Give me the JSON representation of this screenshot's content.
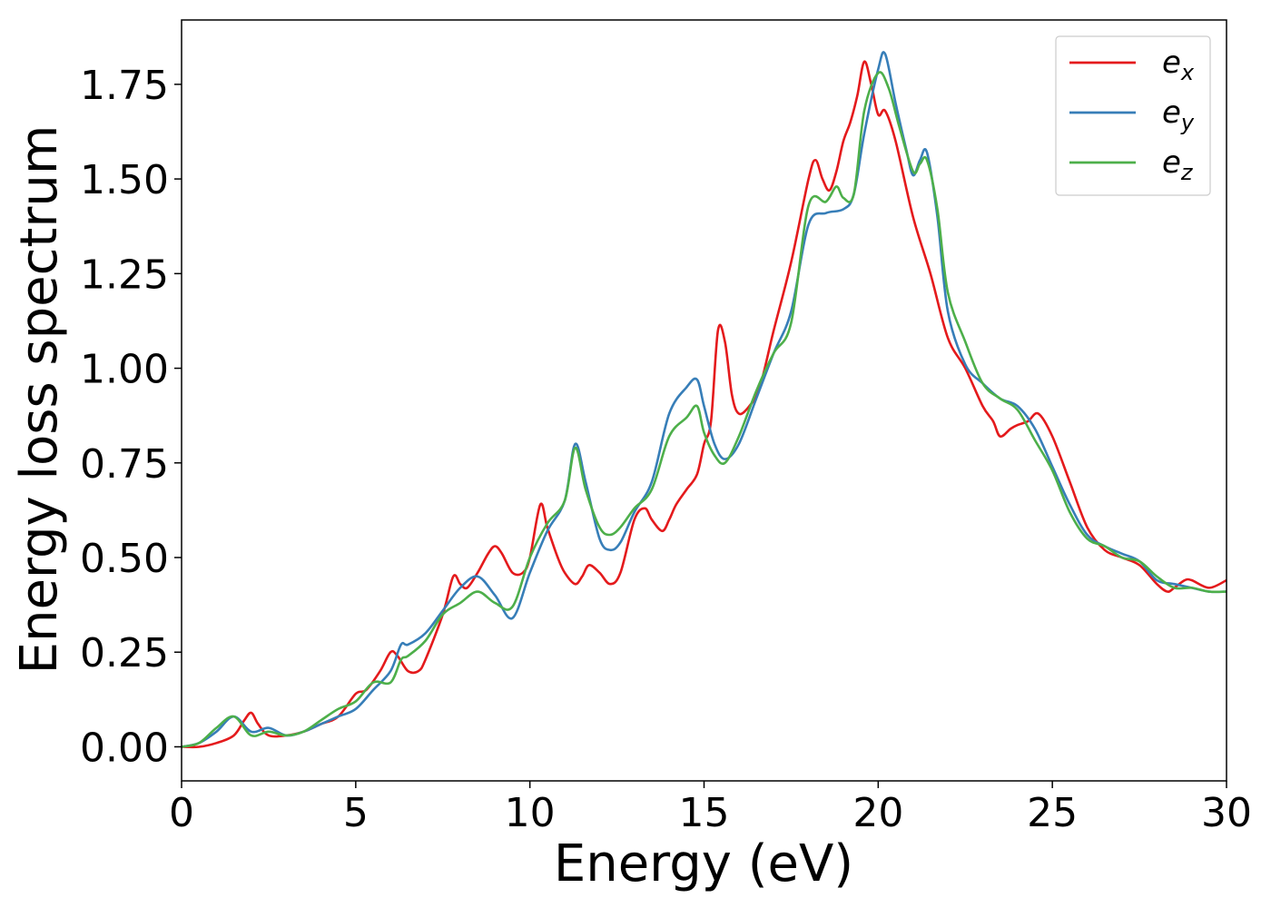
{
  "chart_data": {
    "type": "line",
    "xlabel": "Energy (eV)",
    "ylabel": "Energy loss spectrum",
    "xlim": [
      0,
      30
    ],
    "ylim": [
      -0.09,
      1.92
    ],
    "xticks": [
      "0",
      "5",
      "10",
      "15",
      "20",
      "25",
      "30"
    ],
    "yticks": [
      "0.00",
      "0.25",
      "0.50",
      "0.75",
      "1.00",
      "1.25",
      "1.50",
      "1.75"
    ],
    "grid": false,
    "legend_position": "top-right",
    "series": [
      {
        "name": "e",
        "subscript": "x",
        "color": "#e41a1c",
        "x": [
          0,
          0.5,
          1,
          1.5,
          1.8,
          2.0,
          2.2,
          2.5,
          3,
          3.5,
          4,
          4.5,
          5,
          5.3,
          5.7,
          6.0,
          6.2,
          6.5,
          6.8,
          7.0,
          7.5,
          7.8,
          8.0,
          8.2,
          8.5,
          8.8,
          9.0,
          9.2,
          9.5,
          9.8,
          10.0,
          10.3,
          10.5,
          10.8,
          11.0,
          11.3,
          11.5,
          11.7,
          12.0,
          12.3,
          12.6,
          13.0,
          13.3,
          13.5,
          13.8,
          14.0,
          14.2,
          14.5,
          14.8,
          15.0,
          15.2,
          15.4,
          15.6,
          15.8,
          16.0,
          16.3,
          16.6,
          17.0,
          17.5,
          18.0,
          18.2,
          18.4,
          18.6,
          18.8,
          19.0,
          19.2,
          19.4,
          19.6,
          19.8,
          20.0,
          20.2,
          20.5,
          21.0,
          21.5,
          22.0,
          22.5,
          23.0,
          23.3,
          23.5,
          23.8,
          24.0,
          24.3,
          24.6,
          25.0,
          25.5,
          26.0,
          26.5,
          27.0,
          27.5,
          28.0,
          28.3,
          28.5,
          28.8,
          29.0,
          29.5,
          30.0
        ],
        "y": [
          0.0,
          0.0,
          0.01,
          0.03,
          0.07,
          0.09,
          0.06,
          0.03,
          0.03,
          0.04,
          0.06,
          0.08,
          0.14,
          0.15,
          0.2,
          0.25,
          0.24,
          0.2,
          0.2,
          0.23,
          0.35,
          0.45,
          0.43,
          0.42,
          0.46,
          0.51,
          0.53,
          0.51,
          0.46,
          0.46,
          0.5,
          0.64,
          0.58,
          0.5,
          0.46,
          0.43,
          0.45,
          0.48,
          0.46,
          0.43,
          0.46,
          0.6,
          0.63,
          0.6,
          0.57,
          0.6,
          0.64,
          0.68,
          0.72,
          0.8,
          0.86,
          1.1,
          1.07,
          0.93,
          0.88,
          0.9,
          0.95,
          1.1,
          1.28,
          1.5,
          1.55,
          1.5,
          1.47,
          1.52,
          1.6,
          1.65,
          1.72,
          1.81,
          1.75,
          1.67,
          1.68,
          1.6,
          1.4,
          1.25,
          1.08,
          1.0,
          0.9,
          0.86,
          0.82,
          0.84,
          0.85,
          0.86,
          0.88,
          0.82,
          0.7,
          0.58,
          0.52,
          0.5,
          0.48,
          0.43,
          0.41,
          0.42,
          0.44,
          0.44,
          0.42,
          0.44
        ]
      },
      {
        "name": "e",
        "subscript": "y",
        "color": "#377eb8",
        "x": [
          0,
          0.5,
          1,
          1.5,
          2,
          2.5,
          3,
          3.5,
          4,
          4.5,
          5,
          5.5,
          6,
          6.3,
          6.5,
          7,
          7.5,
          8,
          8.5,
          9,
          9.5,
          10,
          10.5,
          11,
          11.3,
          11.6,
          12,
          12.3,
          12.6,
          13,
          13.5,
          14,
          14.5,
          14.8,
          15,
          15.3,
          15.6,
          16,
          16.5,
          17,
          17.5,
          18,
          18.5,
          19,
          19.3,
          19.6,
          20,
          20.2,
          20.5,
          20.8,
          21,
          21.2,
          21.4,
          21.7,
          22,
          22.5,
          23,
          23.5,
          24,
          24.5,
          25,
          25.5,
          26,
          26.5,
          27,
          27.5,
          28,
          28.5,
          29,
          29.5,
          30
        ],
        "y": [
          0.0,
          0.01,
          0.04,
          0.08,
          0.04,
          0.05,
          0.03,
          0.04,
          0.06,
          0.08,
          0.1,
          0.15,
          0.2,
          0.27,
          0.27,
          0.3,
          0.36,
          0.42,
          0.45,
          0.4,
          0.34,
          0.46,
          0.57,
          0.65,
          0.8,
          0.7,
          0.55,
          0.52,
          0.54,
          0.62,
          0.7,
          0.88,
          0.95,
          0.97,
          0.9,
          0.8,
          0.76,
          0.8,
          0.92,
          1.04,
          1.15,
          1.38,
          1.41,
          1.42,
          1.46,
          1.62,
          1.79,
          1.83,
          1.7,
          1.58,
          1.51,
          1.55,
          1.57,
          1.4,
          1.15,
          1.01,
          0.96,
          0.92,
          0.9,
          0.84,
          0.74,
          0.64,
          0.56,
          0.53,
          0.51,
          0.49,
          0.44,
          0.43,
          0.42,
          0.41,
          0.41
        ]
      },
      {
        "name": "e",
        "subscript": "z",
        "color": "#4daf4a",
        "x": [
          0,
          0.5,
          1,
          1.5,
          2,
          2.5,
          3,
          3.5,
          4,
          4.5,
          5,
          5.5,
          6,
          6.3,
          6.5,
          7,
          7.5,
          8,
          8.5,
          9,
          9.5,
          10,
          10.5,
          11,
          11.3,
          11.6,
          12,
          12.3,
          12.6,
          13,
          13.5,
          14,
          14.5,
          14.8,
          15,
          15.3,
          15.6,
          16,
          16.5,
          17,
          17.5,
          18,
          18.5,
          18.8,
          19,
          19.3,
          19.6,
          20,
          20.3,
          20.6,
          21,
          21.2,
          21.4,
          21.7,
          22,
          22.5,
          23,
          23.5,
          24,
          24.5,
          25,
          25.5,
          26,
          26.5,
          27,
          27.5,
          28,
          28.5,
          29,
          29.5,
          30
        ],
        "y": [
          0.0,
          0.01,
          0.05,
          0.08,
          0.03,
          0.04,
          0.03,
          0.04,
          0.07,
          0.1,
          0.12,
          0.17,
          0.17,
          0.23,
          0.24,
          0.28,
          0.35,
          0.38,
          0.41,
          0.38,
          0.37,
          0.5,
          0.59,
          0.65,
          0.79,
          0.68,
          0.58,
          0.56,
          0.58,
          0.63,
          0.68,
          0.82,
          0.87,
          0.9,
          0.83,
          0.77,
          0.75,
          0.82,
          0.94,
          1.04,
          1.12,
          1.43,
          1.44,
          1.48,
          1.45,
          1.46,
          1.68,
          1.78,
          1.74,
          1.64,
          1.52,
          1.54,
          1.55,
          1.42,
          1.2,
          1.07,
          0.96,
          0.92,
          0.89,
          0.81,
          0.73,
          0.62,
          0.55,
          0.53,
          0.5,
          0.49,
          0.45,
          0.42,
          0.42,
          0.41,
          0.41
        ]
      }
    ]
  }
}
